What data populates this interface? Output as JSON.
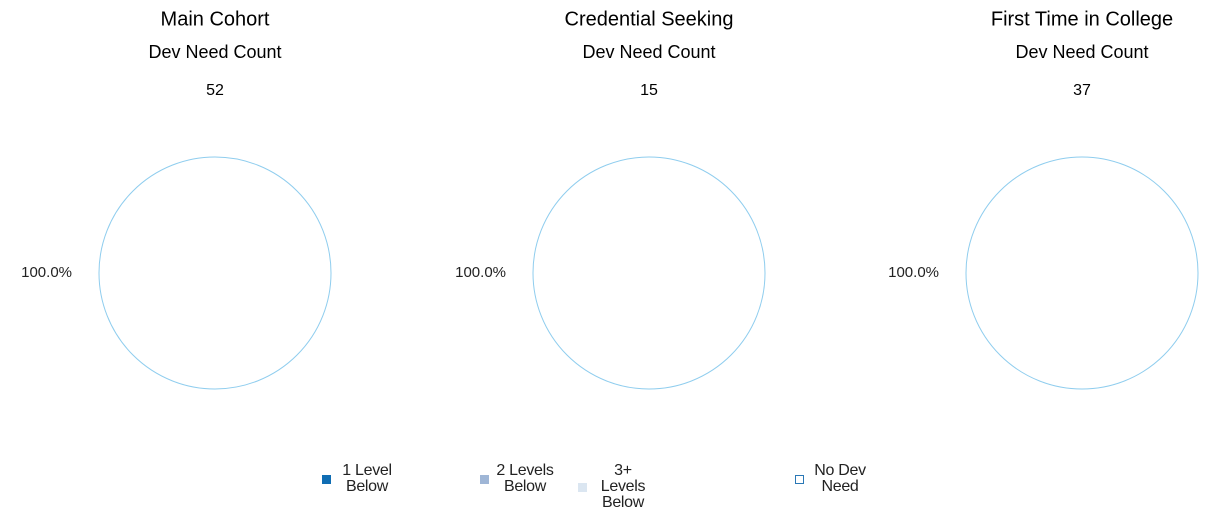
{
  "chart_data": [
    {
      "type": "pie",
      "title": "Main Cohort",
      "subtitle": "Dev Need Count",
      "count": 52,
      "values": [
        0,
        0,
        0,
        100
      ],
      "value_labels": [
        null,
        null,
        null,
        "100.0%"
      ]
    },
    {
      "type": "pie",
      "title": "Credential Seeking",
      "subtitle": "Dev Need Count",
      "count": 15,
      "values": [
        0,
        0,
        0,
        100
      ],
      "value_labels": [
        null,
        null,
        null,
        "100.0%"
      ]
    },
    {
      "type": "pie",
      "title": "First Time in College",
      "subtitle": "Dev Need Count",
      "count": 37,
      "values": [
        0,
        0,
        0,
        100
      ],
      "value_labels": [
        null,
        null,
        null,
        "100.0%"
      ]
    }
  ],
  "legend": {
    "categories": [
      "1 Level Below",
      "2 Levels Below",
      "3+ Levels Below",
      "No Dev Need"
    ],
    "colors": [
      "#0f6db3",
      "#9fb6d6",
      "#dbe6f1",
      "#ffffff"
    ],
    "stroke": "#8fcdee"
  }
}
